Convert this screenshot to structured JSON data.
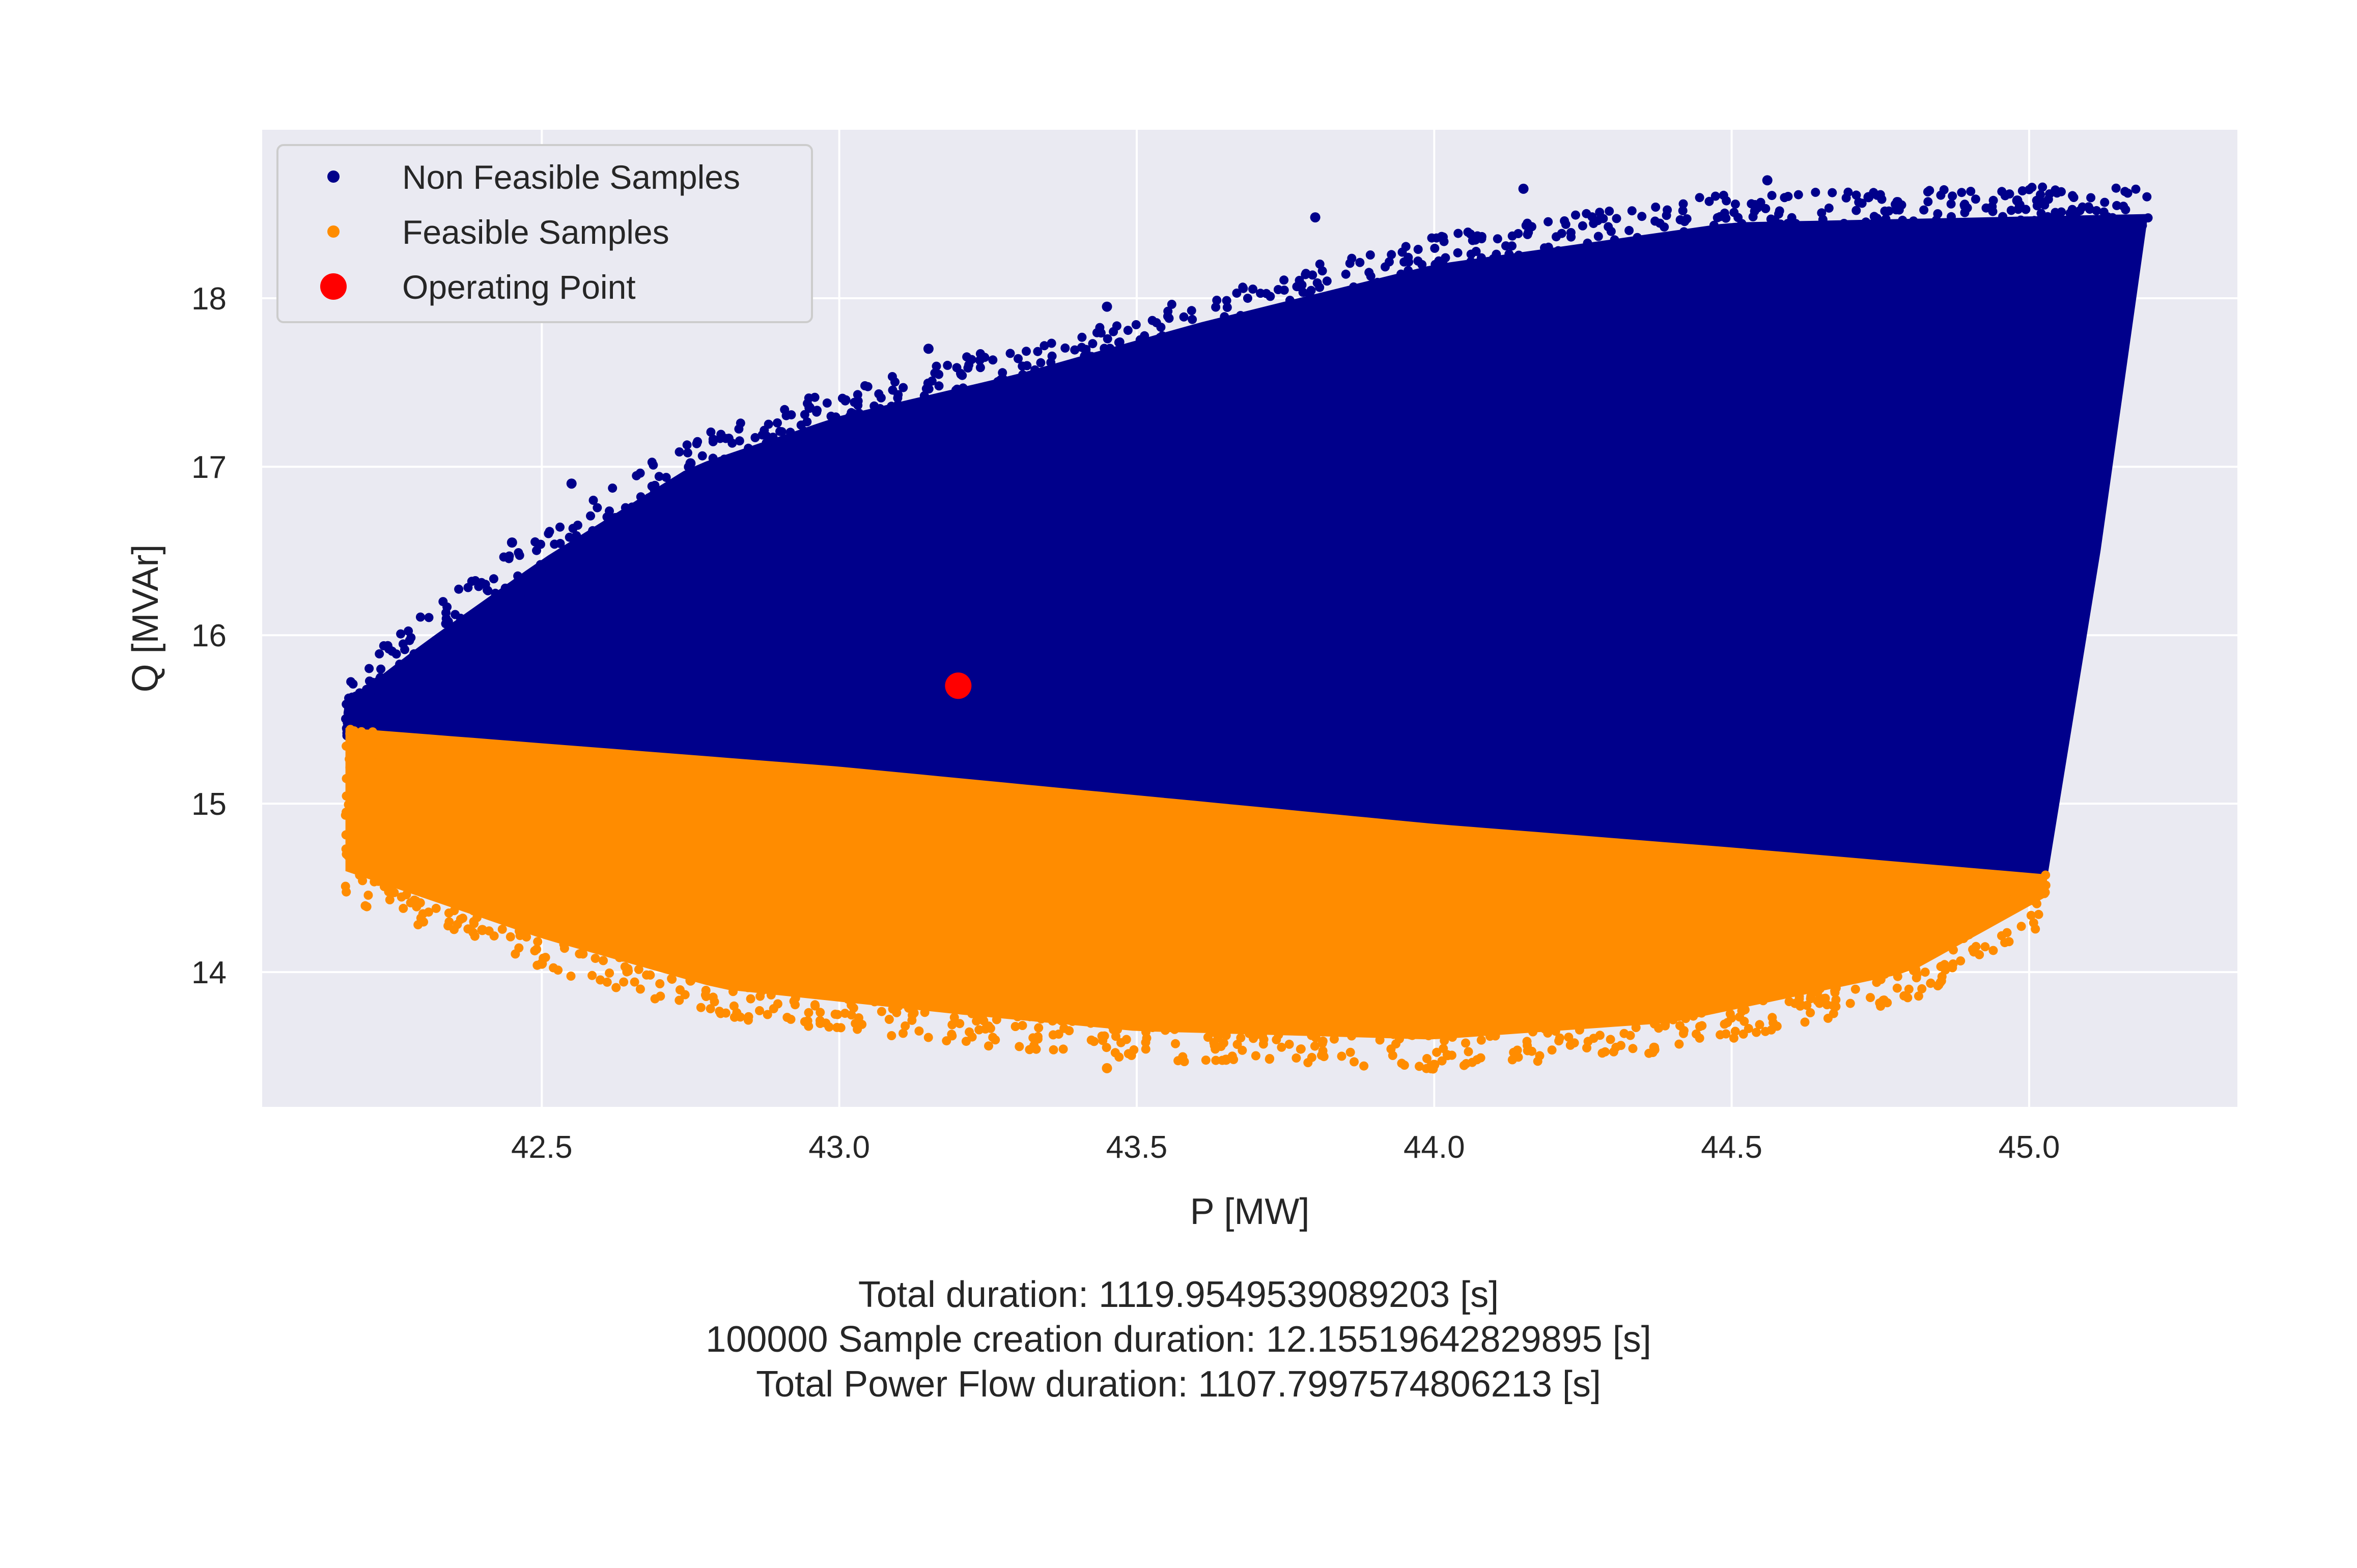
{
  "chart_data": {
    "type": "scatter",
    "title": "",
    "xlabel": "P [MW]",
    "ylabel": "Q [MVAr]",
    "xlim": [
      42.03,
      45.35
    ],
    "ylim": [
      13.2,
      19.0
    ],
    "xticks": [
      42.5,
      43.0,
      43.5,
      44.0,
      44.5,
      45.0
    ],
    "xtick_labels": [
      "42.5",
      "43.0",
      "43.5",
      "44.0",
      "44.5",
      "45.0"
    ],
    "yticks": [
      14,
      15,
      16,
      17,
      18
    ],
    "ytick_labels": [
      "14",
      "15",
      "16",
      "17",
      "18"
    ],
    "grid": true,
    "legend_position": "top-left",
    "background": "#eaeaf2",
    "series": [
      {
        "name": "Non Feasible Samples",
        "color": "#00008b",
        "marker_size": "small",
        "region": {
          "lower_edge": [
            [
              42.17,
              15.4
            ],
            [
              43.0,
              15.18
            ],
            [
              43.5,
              15.02
            ],
            [
              44.0,
              14.86
            ],
            [
              44.5,
              14.72
            ],
            [
              45.03,
              14.55
            ]
          ],
          "upper_edge": [
            [
              42.17,
              15.6
            ],
            [
              42.3,
              15.95
            ],
            [
              42.5,
              16.45
            ],
            [
              42.75,
              17.0
            ],
            [
              43.0,
              17.3
            ],
            [
              43.3,
              17.55
            ],
            [
              43.6,
              17.85
            ],
            [
              44.0,
              18.2
            ],
            [
              44.5,
              18.45
            ],
            [
              45.2,
              18.5
            ]
          ],
          "right_edge": [
            [
              45.03,
              14.55
            ],
            [
              45.12,
              16.5
            ],
            [
              45.2,
              18.5
            ]
          ]
        },
        "outliers": [
          [
            42.45,
            16.55
          ],
          [
            42.55,
            16.9
          ],
          [
            42.75,
            17.02
          ],
          [
            42.95,
            17.35
          ],
          [
            43.15,
            17.7
          ],
          [
            43.45,
            17.95
          ],
          [
            43.8,
            18.48
          ],
          [
            44.15,
            18.65
          ],
          [
            44.56,
            18.7
          ],
          [
            44.73,
            18.6
          ],
          [
            44.98,
            18.58
          ]
        ]
      },
      {
        "name": "Feasible Samples",
        "color": "#ff8c00",
        "marker_size": "small",
        "region": {
          "upper_edge": [
            [
              42.17,
              15.45
            ],
            [
              43.0,
              15.22
            ],
            [
              43.5,
              15.05
            ],
            [
              44.0,
              14.88
            ],
            [
              44.5,
              14.74
            ],
            [
              45.03,
              14.58
            ]
          ],
          "lower_edge": [
            [
              42.17,
              14.6
            ],
            [
              42.5,
              14.2
            ],
            [
              42.8,
              13.9
            ],
            [
              43.2,
              13.75
            ],
            [
              43.5,
              13.65
            ],
            [
              44.0,
              13.6
            ],
            [
              44.4,
              13.7
            ],
            [
              44.8,
              14.0
            ],
            [
              45.03,
              14.45
            ]
          ]
        },
        "outliers": [
          [
            42.4,
            14.25
          ],
          [
            42.5,
            14.05
          ],
          [
            42.75,
            13.95
          ],
          [
            43.45,
            13.43
          ],
          [
            43.65,
            13.48
          ],
          [
            44.0,
            13.45
          ],
          [
            44.37,
            13.54
          ]
        ]
      },
      {
        "name": "Operating Point",
        "color": "#ff0000",
        "marker_size": "large",
        "points": [
          [
            43.2,
            15.7
          ]
        ]
      }
    ]
  },
  "caption": {
    "line1": "Total duration: 1119.9549539089203 [s]",
    "line2": "100000 Sample creation duration: 12.15519642829895 [s]",
    "line3": "Total Power Flow duration: 1107.7997574806213 [s]"
  }
}
